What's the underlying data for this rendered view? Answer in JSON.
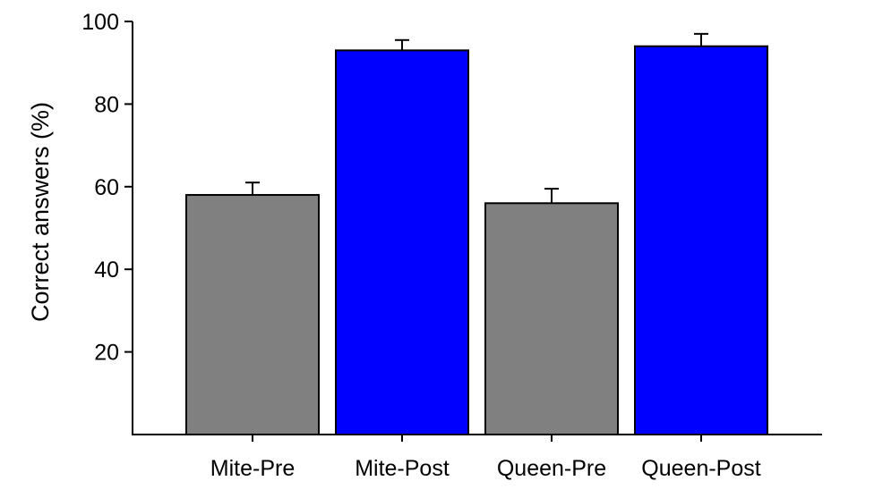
{
  "chart_data": {
    "type": "bar",
    "title": "",
    "xlabel": "",
    "ylabel": "Correct answers (%)",
    "ylim": [
      0,
      100
    ],
    "yticks": [
      20,
      40,
      60,
      80,
      100
    ],
    "categories": [
      "Mite-Pre",
      "Mite-Post",
      "Queen-Pre",
      "Queen-Post"
    ],
    "values": [
      58,
      93,
      56,
      94
    ],
    "error_plus": [
      3,
      2.5,
      3.5,
      3
    ],
    "bar_colors": [
      "#808080",
      "#0000ff",
      "#808080",
      "#0000ff"
    ],
    "grid": false,
    "legend": "none"
  }
}
